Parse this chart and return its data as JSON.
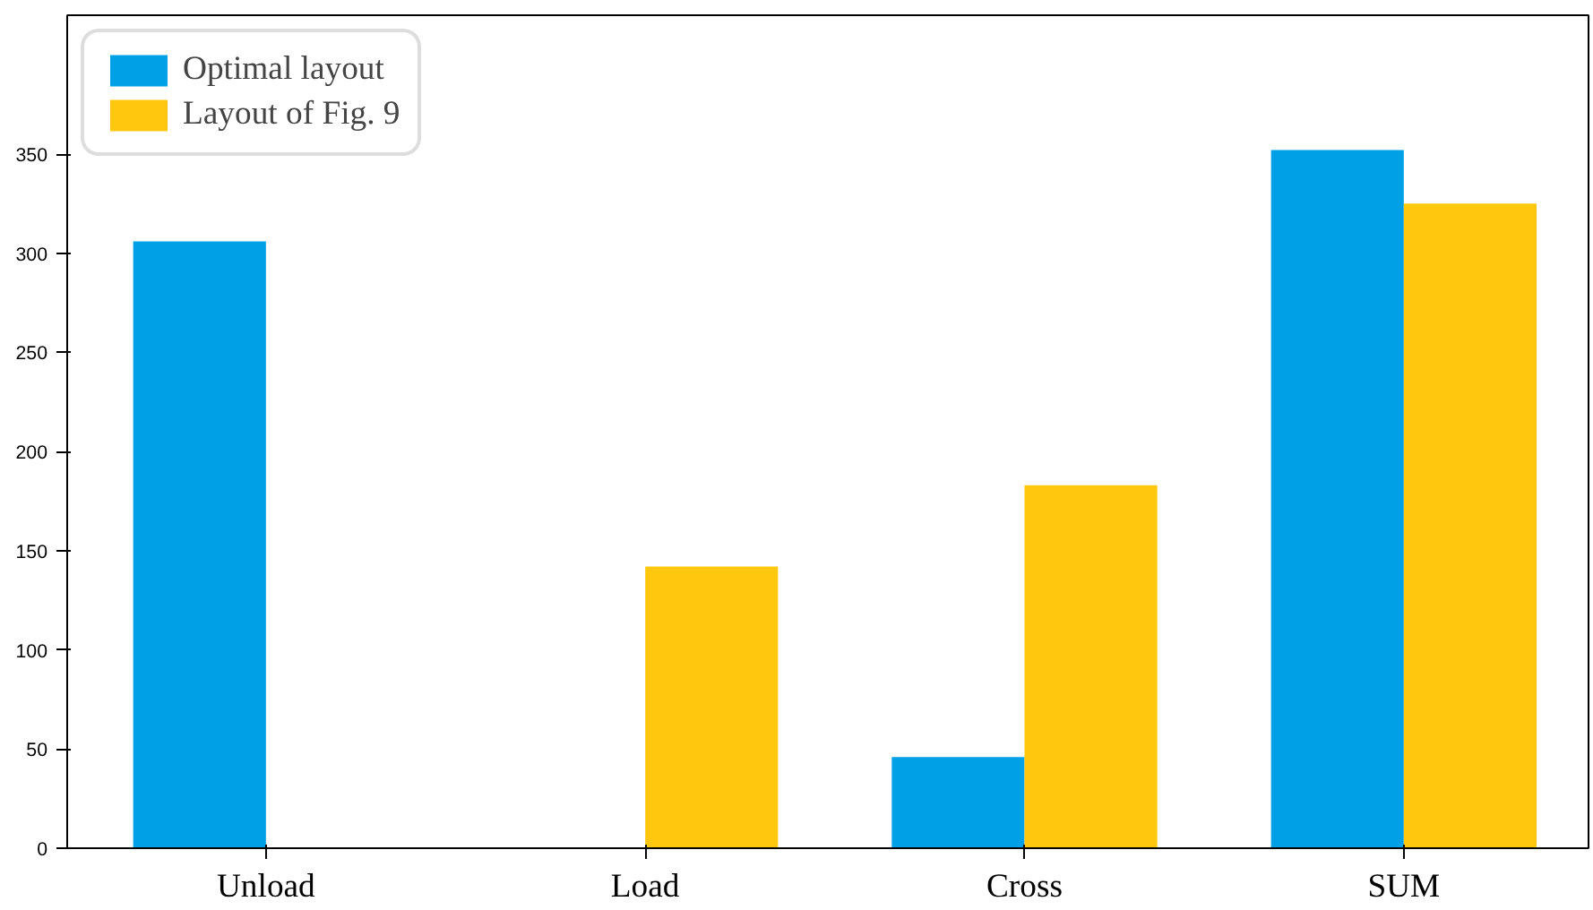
{
  "chart_data": {
    "type": "bar",
    "categories": [
      "Unload",
      "Load",
      "Cross",
      "SUM"
    ],
    "series": [
      {
        "name": "Optimal layout",
        "color": "#00a0e6",
        "values": [
          306,
          0,
          46,
          352
        ]
      },
      {
        "name": "Layout of Fig. 9",
        "color": "#ffc80f",
        "values": [
          0,
          142,
          183,
          325
        ]
      }
    ],
    "ylim": [
      0,
      420
    ],
    "yticks": [
      0,
      50,
      100,
      150,
      200,
      250,
      300,
      350
    ],
    "grid": false,
    "legend": "top left"
  }
}
